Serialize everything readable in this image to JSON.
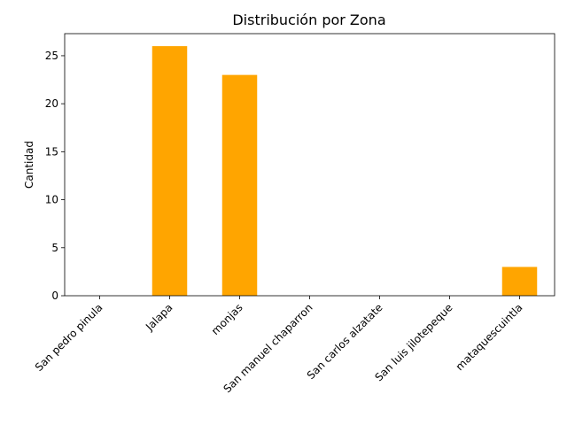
{
  "chart_data": {
    "type": "bar",
    "title": "Distribución por Zona",
    "xlabel": "",
    "ylabel": "Cantidad",
    "categories": [
      "San pedro pinula",
      "Jalapa",
      "monjas",
      "San manuel chaparron",
      "San carlos alzatate",
      "San luis jilotepeque",
      "mataquescuintla"
    ],
    "values": [
      0,
      26,
      23,
      0,
      0,
      0,
      3
    ],
    "ylim": [
      0,
      27.3
    ],
    "yticks": [
      0,
      5,
      10,
      15,
      20,
      25
    ],
    "bar_color": "#ffa500",
    "grid": false,
    "legend": "none"
  }
}
